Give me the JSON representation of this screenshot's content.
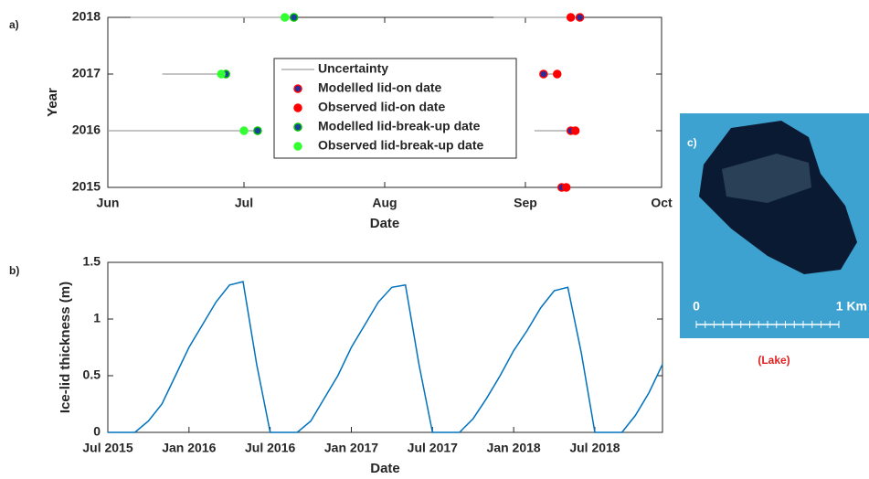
{
  "panel_labels": [
    "a)",
    "b)",
    "c)"
  ],
  "chart_data": [
    {
      "type": "scatter",
      "xlabel": "Date",
      "ylabel": "Year",
      "xlim": [
        152,
        274
      ],
      "xticks": [
        {
          "value": 152,
          "label": "Jun"
        },
        {
          "value": 182,
          "label": "Jul"
        },
        {
          "value": 213,
          "label": "Aug"
        },
        {
          "value": 244,
          "label": "Sep"
        },
        {
          "value": 274,
          "label": "Oct"
        }
      ],
      "ylim": [
        2015,
        2018
      ],
      "yticks": [
        2015,
        2016,
        2017,
        2018
      ],
      "legend": "center",
      "series": [
        {
          "name": "Uncertainty",
          "mode": "line",
          "color": "#a0a0a0",
          "x": [
            157,
            193,
            null,
            237,
            256,
            null,
            164,
            178,
            null,
            248,
            251,
            null,
            152,
            185,
            null,
            246,
            255
          ],
          "values": [
            2018,
            2018,
            null,
            2018,
            2018,
            null,
            2017,
            2017,
            null,
            2017,
            2017,
            null,
            2016,
            2016,
            null,
            2016,
            2016
          ]
        },
        {
          "name": "Modelled lid-on date",
          "mode": "marker",
          "color": "#2b2b9a",
          "edgecolor": "#ff0000",
          "x": [
            256,
            248,
            254,
            252
          ],
          "values": [
            2018,
            2017,
            2016,
            2015
          ]
        },
        {
          "name": "Observed lid-on date",
          "mode": "marker",
          "color": "#ff0000",
          "edgecolor": "#ff0000",
          "x": [
            254,
            251,
            255,
            253
          ],
          "values": [
            2018,
            2017,
            2016,
            2015
          ]
        },
        {
          "name": "Modelled lid-break-up date",
          "mode": "marker",
          "color": "#1a3fa0",
          "edgecolor": "#00c000",
          "x": [
            193,
            178,
            185
          ],
          "values": [
            2018,
            2017,
            2016
          ]
        },
        {
          "name": "Observed lid-break-up date",
          "mode": "marker",
          "color": "#33ff33",
          "edgecolor": "#33ff33",
          "x": [
            191,
            177,
            182
          ],
          "values": [
            2018,
            2017,
            2016
          ]
        }
      ]
    },
    {
      "type": "line",
      "xlabel": "Date",
      "ylabel": "Ice-lid thickness (m)",
      "xlim": [
        "2015-07",
        "2018-12"
      ],
      "xticks": [
        {
          "value": "2015-07",
          "label": "Jul 2015"
        },
        {
          "value": "2016-01",
          "label": "Jan 2016"
        },
        {
          "value": "2016-07",
          "label": "Jul 2016"
        },
        {
          "value": "2017-01",
          "label": "Jan 2017"
        },
        {
          "value": "2017-07",
          "label": "Jul 2017"
        },
        {
          "value": "2018-01",
          "label": "Jan 2018"
        },
        {
          "value": "2018-07",
          "label": "Jul 2018"
        }
      ],
      "ylim": [
        0,
        1.5
      ],
      "yticks": [
        0,
        0.5,
        1,
        1.5
      ],
      "series": [
        {
          "color": "#0072bd",
          "x": [
            "2015-07",
            "2015-08",
            "2015-09",
            "2015-10",
            "2015-11",
            "2015-12",
            "2016-01",
            "2016-02",
            "2016-03",
            "2016-04",
            "2016-05",
            "2016-06",
            "2016-07",
            "2016-08",
            "2016-09",
            "2016-10",
            "2016-11",
            "2016-12",
            "2017-01",
            "2017-02",
            "2017-03",
            "2017-04",
            "2017-05",
            "2017-06",
            "2017-07",
            "2017-08",
            "2017-09",
            "2017-10",
            "2017-11",
            "2017-12",
            "2018-01",
            "2018-02",
            "2018-03",
            "2018-04",
            "2018-05",
            "2018-06",
            "2018-07",
            "2018-08",
            "2018-09",
            "2018-10",
            "2018-11",
            "2018-12"
          ],
          "values": [
            0,
            0,
            0,
            0.1,
            0.25,
            0.5,
            0.75,
            0.95,
            1.15,
            1.3,
            1.33,
            0.6,
            0,
            0,
            0,
            0.1,
            0.3,
            0.5,
            0.75,
            0.95,
            1.15,
            1.28,
            1.3,
            0.6,
            0,
            0,
            0,
            0.12,
            0.3,
            0.5,
            0.72,
            0.9,
            1.1,
            1.25,
            1.28,
            0.7,
            0,
            0,
            0,
            0.15,
            0.35,
            0.6
          ]
        }
      ]
    }
  ],
  "image_panel": {
    "scale_start": "0",
    "scale_end": "1 Km",
    "caption": "(Lake)"
  }
}
